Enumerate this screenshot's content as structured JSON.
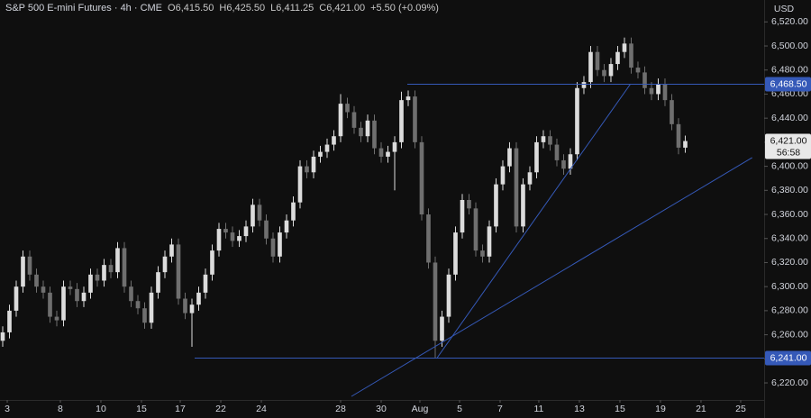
{
  "chart_data": {
    "type": "candlestick",
    "title": "S&P 500 E-mini Futures · 4h · CME",
    "quote": [
      "O6,415.50",
      "H6,425.50",
      "L6,411.25",
      "C6,421.00",
      "+5.50 (+0.09%)"
    ],
    "currency": "USD",
    "up_color": "#dcdcdc",
    "down_color": "#6f6f6f",
    "line_color": "#3559b8",
    "open": [
      6255,
      6262,
      6280,
      6300,
      6325,
      6310,
      6300,
      6295,
      6275,
      6272,
      6300,
      6298,
      6288,
      6295,
      6310,
      6305,
      6318,
      6312,
      6332,
      6300,
      6288,
      6282,
      6270,
      6295,
      6312,
      6325,
      6335,
      6290,
      6278,
      6285,
      6295,
      6310,
      6330,
      6348,
      6345,
      6338,
      6342,
      6350,
      6368,
      6355,
      6340,
      6325,
      6345,
      6355,
      6370,
      6400,
      6395,
      6408,
      6412,
      6418,
      6425,
      6452,
      6445,
      6432,
      6425,
      6438,
      6415,
      6408,
      6412,
      6420,
      6455,
      6458,
      6420,
      6360,
      6320,
      6255,
      6275,
      6310,
      6345,
      6372,
      6365,
      6330,
      6325,
      6350,
      6385,
      6400,
      6415,
      6350,
      6385,
      6395,
      6420,
      6425,
      6418,
      6405,
      6398,
      6410,
      6465,
      6470,
      6495,
      6480,
      6475,
      6485,
      6495,
      6502,
      6482,
      6478,
      6465,
      6460,
      6468,
      6455,
      6435,
      6415.5
    ],
    "high": [
      6267,
      6285,
      6305,
      6330,
      6330,
      6315,
      6305,
      6300,
      6280,
      6305,
      6305,
      6303,
      6300,
      6315,
      6315,
      6323,
      6323,
      6337,
      6337,
      6305,
      6293,
      6287,
      6300,
      6317,
      6330,
      6340,
      6340,
      6295,
      6290,
      6300,
      6315,
      6335,
      6353,
      6353,
      6350,
      6347,
      6355,
      6373,
      6373,
      6360,
      6345,
      6350,
      6360,
      6375,
      6405,
      6405,
      6413,
      6417,
      6423,
      6430,
      6460,
      6457,
      6450,
      6437,
      6443,
      6443,
      6420,
      6417,
      6425,
      6462,
      6463,
      6463,
      6425,
      6365,
      6325,
      6280,
      6315,
      6350,
      6377,
      6377,
      6370,
      6335,
      6355,
      6390,
      6405,
      6420,
      6420,
      6390,
      6400,
      6425,
      6430,
      6430,
      6423,
      6410,
      6415,
      6470,
      6475,
      6500,
      6500,
      6485,
      6490,
      6500,
      6507,
      6507,
      6487,
      6483,
      6470,
      6473,
      6473,
      6460,
      6440,
      6425.5
    ],
    "low": [
      6250,
      6257,
      6275,
      6295,
      6305,
      6295,
      6290,
      6270,
      6267,
      6267,
      6293,
      6283,
      6283,
      6290,
      6300,
      6300,
      6307,
      6307,
      6295,
      6283,
      6277,
      6265,
      6265,
      6290,
      6307,
      6320,
      6285,
      6273,
      6250,
      6280,
      6290,
      6305,
      6325,
      6340,
      6333,
      6333,
      6337,
      6345,
      6350,
      6335,
      6320,
      6320,
      6340,
      6350,
      6365,
      6390,
      6390,
      6403,
      6407,
      6413,
      6420,
      6440,
      6427,
      6420,
      6420,
      6410,
      6403,
      6403,
      6380,
      6415,
      6450,
      6415,
      6355,
      6315,
      6241,
      6250,
      6270,
      6305,
      6340,
      6360,
      6325,
      6320,
      6320,
      6345,
      6380,
      6395,
      6345,
      6345,
      6380,
      6390,
      6415,
      6413,
      6400,
      6393,
      6393,
      6405,
      6460,
      6465,
      6475,
      6470,
      6470,
      6480,
      6490,
      6477,
      6473,
      6460,
      6455,
      6455,
      6450,
      6430,
      6410,
      6411.25
    ],
    "close": [
      6262,
      6280,
      6300,
      6325,
      6310,
      6300,
      6295,
      6275,
      6272,
      6300,
      6298,
      6288,
      6295,
      6310,
      6305,
      6318,
      6312,
      6332,
      6300,
      6288,
      6282,
      6270,
      6295,
      6312,
      6325,
      6335,
      6290,
      6278,
      6285,
      6295,
      6310,
      6330,
      6348,
      6345,
      6338,
      6342,
      6350,
      6368,
      6355,
      6340,
      6325,
      6345,
      6355,
      6370,
      6400,
      6395,
      6408,
      6412,
      6418,
      6425,
      6452,
      6445,
      6432,
      6425,
      6438,
      6415,
      6408,
      6412,
      6420,
      6455,
      6458,
      6420,
      6360,
      6320,
      6255,
      6275,
      6310,
      6345,
      6372,
      6365,
      6330,
      6325,
      6350,
      6385,
      6400,
      6415,
      6350,
      6385,
      6395,
      6420,
      6425,
      6418,
      6405,
      6398,
      6410,
      6465,
      6470,
      6495,
      6480,
      6475,
      6485,
      6495,
      6502,
      6482,
      6478,
      6465,
      6460,
      6468,
      6455,
      6435,
      6415.5,
      6421
    ],
    "xlim": [
      -0.4,
      112.67
    ],
    "xticks": [
      {
        "value": 0.67,
        "label": "3"
      },
      {
        "value": 8.53,
        "label": "8"
      },
      {
        "value": 14.53,
        "label": "10"
      },
      {
        "value": 20.53,
        "label": "15"
      },
      {
        "value": 26.27,
        "label": "17"
      },
      {
        "value": 32.27,
        "label": "22"
      },
      {
        "value": 38.27,
        "label": "24"
      },
      {
        "value": 50,
        "label": "28"
      },
      {
        "value": 56,
        "label": "30"
      },
      {
        "value": 61.73,
        "label": "Aug"
      },
      {
        "value": 67.6,
        "label": "5"
      },
      {
        "value": 73.6,
        "label": "7"
      },
      {
        "value": 79.33,
        "label": "11"
      },
      {
        "value": 85.33,
        "label": "13"
      },
      {
        "value": 91.33,
        "label": "15"
      },
      {
        "value": 97.33,
        "label": "19"
      },
      {
        "value": 103.33,
        "label": "21"
      },
      {
        "value": 109.2,
        "label": "25"
      }
    ],
    "ylim": [
      6205.8,
      6538.2
    ],
    "yticks": [
      {
        "value": 6220,
        "label": "6,220.00"
      },
      {
        "value": 6240,
        "label": "6,240.00"
      },
      {
        "value": 6260,
        "label": "6,260.00"
      },
      {
        "value": 6280,
        "label": "6,280.00"
      },
      {
        "value": 6300,
        "label": "6,300.00"
      },
      {
        "value": 6320,
        "label": "6,320.00"
      },
      {
        "value": 6340,
        "label": "6,340.00"
      },
      {
        "value": 6360,
        "label": "6,360.00"
      },
      {
        "value": 6380,
        "label": "6,380.00"
      },
      {
        "value": 6400,
        "label": "6,400.00"
      },
      {
        "value": 6420,
        "label": "6,420.00"
      },
      {
        "value": 6440,
        "label": "6,440.00"
      },
      {
        "value": 6460,
        "label": "6,460.00"
      },
      {
        "value": 6480,
        "label": "6,480.00"
      },
      {
        "value": 6500,
        "label": "6,500.00"
      },
      {
        "value": 6520,
        "label": "6,520.00"
      }
    ],
    "levels": [
      {
        "value": 6468.5,
        "label": "6,468.50",
        "start": 59.87
      },
      {
        "value": 6241,
        "label": "6,241.00",
        "start": 28.4
      }
    ],
    "trendlines": [
      {
        "x": [
          64.3,
          92.9
        ],
        "y": [
          6241,
          6468.5
        ]
      },
      {
        "x": [
          51.6,
          110.9
        ],
        "y": [
          6208.8,
          6407.2
        ]
      }
    ],
    "last_price": {
      "value": 6421,
      "label": "6,421.00",
      "countdown": "56:58"
    }
  }
}
